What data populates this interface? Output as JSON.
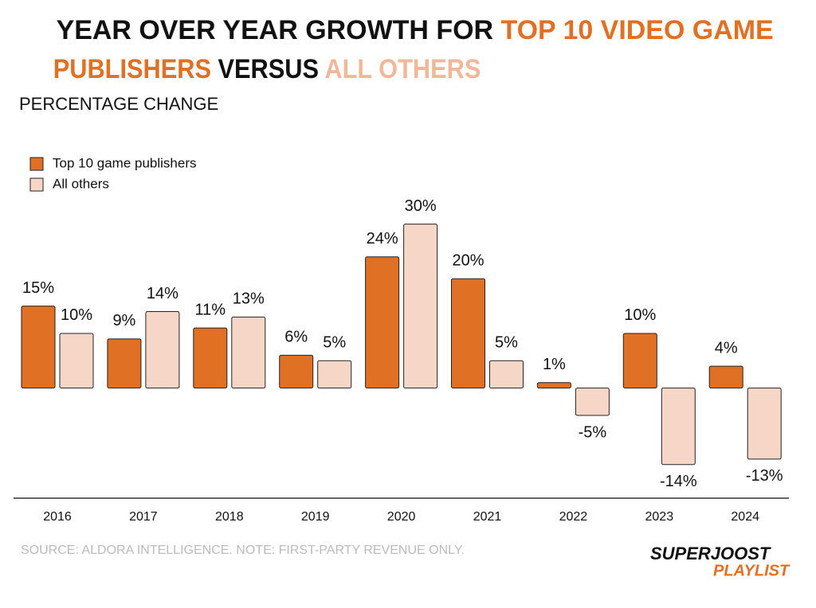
{
  "chart_data": {
    "type": "bar",
    "title": [
      [
        {
          "text": "YEAR OVER YEAR GROWTH FOR ",
          "color": "#111111"
        },
        {
          "text": "TOP 10 VIDEO GAME",
          "color": "#e07024"
        }
      ],
      [
        {
          "text": "PUBLISHERS",
          "color": "#e07024"
        },
        {
          "text": " VERSUS ",
          "color": "#111111"
        },
        {
          "text": "ALL OTHERS",
          "color": "#f0b898"
        }
      ]
    ],
    "subtitle": "PERCENTAGE CHANGE",
    "categories": [
      "2016",
      "2017",
      "2018",
      "2019",
      "2020",
      "2021",
      "2022",
      "2023",
      "2024"
    ],
    "series": [
      {
        "name": "Top 10 game publishers",
        "color": "#e07024",
        "values": [
          15,
          9,
          11,
          6,
          24,
          20,
          1,
          10,
          4
        ],
        "value_labels": [
          "15%",
          "9%",
          "11%",
          "6%",
          "24%",
          "20%",
          "1%",
          "10%",
          "4%"
        ]
      },
      {
        "name": "All others",
        "color": "#f6d6c6",
        "values": [
          10,
          14,
          13,
          5,
          30,
          5,
          -5,
          -14,
          -13
        ],
        "value_labels": [
          "10%",
          "14%",
          "13%",
          "5%",
          "30%",
          "5%",
          "-5%",
          "-14%",
          "-13%"
        ]
      }
    ],
    "ylim": [
      -20,
      33
    ],
    "source": "SOURCE: ALDORA INTELLIGENCE. NOTE: FIRST-PARTY REVENUE ONLY.",
    "logo": [
      "SUPERJOOST",
      "PLAYLIST"
    ]
  }
}
